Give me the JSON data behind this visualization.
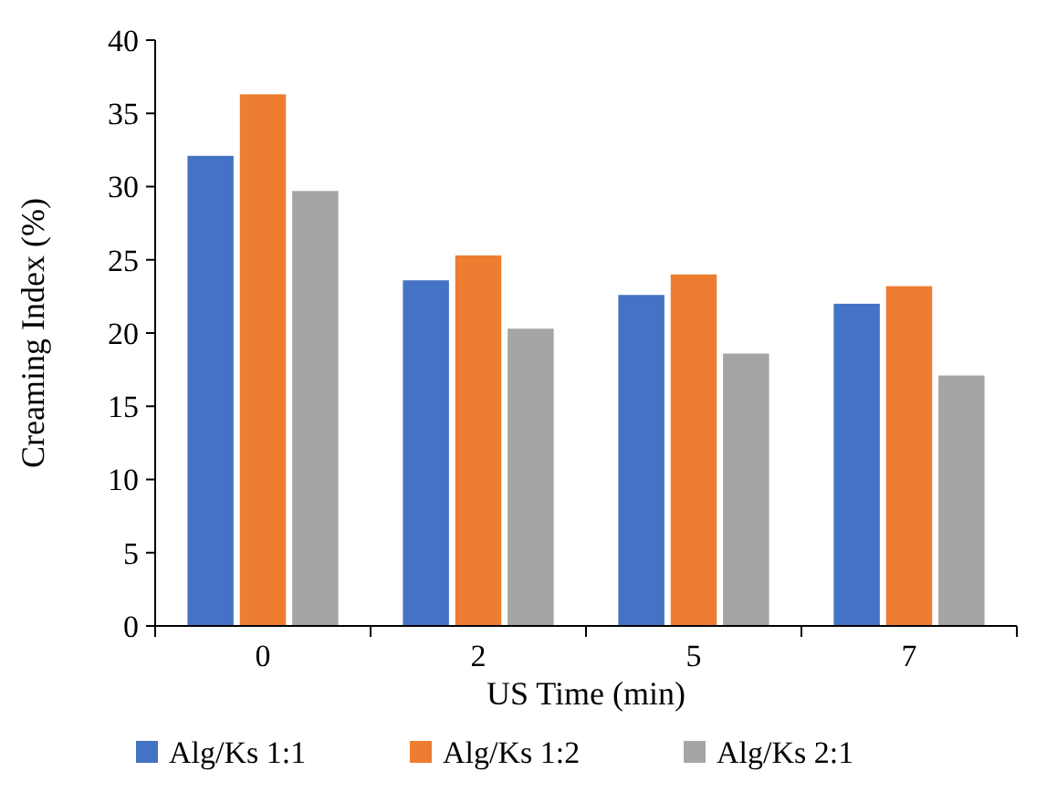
{
  "chart_data": {
    "type": "bar",
    "xlabel": "US Time (min)",
    "ylabel": "Creaming Index (%)",
    "categories": [
      "0",
      "2",
      "5",
      "7"
    ],
    "series": [
      {
        "name": "Alg/Ks 1:1",
        "color": "#4472c4",
        "values": [
          32.1,
          23.6,
          22.6,
          22.0
        ]
      },
      {
        "name": "Alg/Ks 1:2",
        "color": "#ed7d31",
        "values": [
          36.3,
          25.3,
          24.0,
          23.2
        ]
      },
      {
        "name": "Alg/Ks 2:1",
        "color": "#a5a5a5",
        "values": [
          29.7,
          20.3,
          18.6,
          17.1
        ]
      }
    ],
    "ylim": [
      0,
      40
    ],
    "yticks": [
      0,
      5,
      10,
      15,
      20,
      25,
      30,
      35,
      40
    ],
    "grid": false,
    "legend": "bottom"
  }
}
